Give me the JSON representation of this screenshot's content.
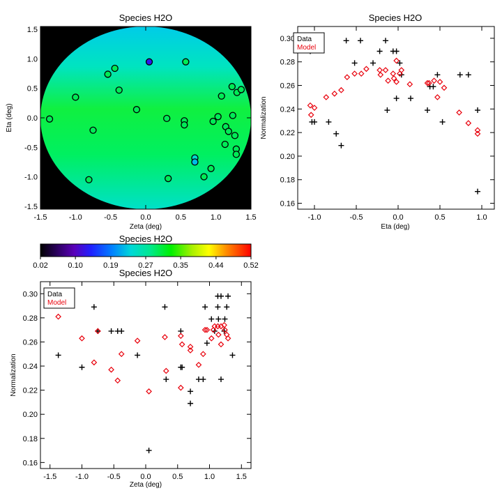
{
  "colors": {
    "data": "#000000",
    "model": "#e8000b"
  },
  "chart_data": [
    {
      "id": "map",
      "type": "heatmap",
      "title": "Species H2O",
      "xlabel": "Zeta (deg)",
      "ylabel": "Eta (deg)",
      "xlim": [
        -1.5,
        1.5
      ],
      "ylim": [
        -1.55,
        1.55
      ],
      "xticks": [
        "-1.5",
        "-1.0",
        "-0.5",
        "0.0",
        "0.5",
        "1.0",
        "1.5"
      ],
      "xtick_values": [
        -1.5,
        -1.0,
        -0.5,
        0.0,
        0.5,
        1.0,
        1.5
      ],
      "yticks": [
        "-1.5",
        "-1.0",
        "-0.5",
        "0.0",
        "0.5",
        "1.0",
        "1.5"
      ],
      "ytick_values": [
        -1.5,
        -1.0,
        -0.5,
        0.0,
        0.5,
        1.0,
        1.5
      ],
      "background_value_top": 0.2,
      "background_value_center": 0.29,
      "background_value_bottom": 0.23,
      "points": [
        {
          "zeta": 0.05,
          "eta": 0.95,
          "value": 0.13
        },
        {
          "zeta": 0.57,
          "eta": 0.95,
          "value": 0.3
        },
        {
          "zeta": -0.44,
          "eta": 0.84,
          "value": 0.3
        },
        {
          "zeta": -0.54,
          "eta": 0.74,
          "value": 0.3
        },
        {
          "zeta": -0.38,
          "eta": 0.47,
          "value": 0.3
        },
        {
          "zeta": -1.0,
          "eta": 0.35,
          "value": 0.3
        },
        {
          "zeta": -0.13,
          "eta": 0.14,
          "value": 0.3
        },
        {
          "zeta": -1.37,
          "eta": -0.02,
          "value": 0.3
        },
        {
          "zeta": -0.75,
          "eta": -0.21,
          "value": 0.3
        },
        {
          "zeta": -0.81,
          "eta": -1.05,
          "value": 0.3
        },
        {
          "zeta": 0.3,
          "eta": -0.01,
          "value": 0.3
        },
        {
          "zeta": 0.55,
          "eta": -0.05,
          "value": 0.3
        },
        {
          "zeta": 0.55,
          "eta": -0.12,
          "value": 0.3
        },
        {
          "zeta": 0.7,
          "eta": -0.68,
          "value": 0.24
        },
        {
          "zeta": 0.7,
          "eta": -0.75,
          "value": 0.22
        },
        {
          "zeta": 0.32,
          "eta": -1.03,
          "value": 0.3
        },
        {
          "zeta": 0.83,
          "eta": -1.0,
          "value": 0.3
        },
        {
          "zeta": 0.93,
          "eta": -0.86,
          "value": 0.3
        },
        {
          "zeta": 0.96,
          "eta": -0.06,
          "value": 0.3
        },
        {
          "zeta": 1.03,
          "eta": 0.02,
          "value": 0.3
        },
        {
          "zeta": 1.08,
          "eta": 0.37,
          "value": 0.3
        },
        {
          "zeta": 1.23,
          "eta": 0.53,
          "value": 0.3
        },
        {
          "zeta": 1.3,
          "eta": 0.43,
          "value": 0.3
        },
        {
          "zeta": 1.36,
          "eta": 0.48,
          "value": 0.3
        },
        {
          "zeta": 1.24,
          "eta": 0.04,
          "value": 0.3
        },
        {
          "zeta": 1.14,
          "eta": -0.15,
          "value": 0.3
        },
        {
          "zeta": 1.18,
          "eta": -0.23,
          "value": 0.3
        },
        {
          "zeta": 1.13,
          "eta": -0.45,
          "value": 0.3
        },
        {
          "zeta": 1.27,
          "eta": -0.3,
          "value": 0.3
        },
        {
          "zeta": 1.29,
          "eta": -0.53,
          "value": 0.3
        },
        {
          "zeta": 1.29,
          "eta": -0.62,
          "value": 0.3
        }
      ]
    },
    {
      "id": "colorbar",
      "type": "colorbar",
      "title": "Species H2O",
      "range": [
        0.02,
        0.52
      ],
      "ticks": [
        "0.02",
        "0.10",
        "0.19",
        "0.27",
        "0.35",
        "0.44",
        "0.52"
      ],
      "tick_values": [
        0.02,
        0.103,
        0.187,
        0.27,
        0.353,
        0.437,
        0.52
      ]
    },
    {
      "id": "eta",
      "type": "scatter",
      "title": "Species H2O",
      "xlabel": "Eta (deg)",
      "ylabel": "Normalization",
      "xlim": [
        -1.2,
        1.15
      ],
      "ylim": [
        0.155,
        0.31
      ],
      "xticks": [
        "-1.0",
        "-0.5",
        "0.0",
        "0.5",
        "1.0"
      ],
      "xtick_values": [
        -1.0,
        -0.5,
        0.0,
        0.5,
        1.0
      ],
      "yticks": [
        "0.16",
        "0.18",
        "0.20",
        "0.22",
        "0.24",
        "0.26",
        "0.28",
        "0.30"
      ],
      "ytick_values": [
        0.16,
        0.18,
        0.2,
        0.22,
        0.24,
        0.26,
        0.28,
        0.3
      ],
      "legend": [
        "Data",
        "Model"
      ],
      "series": [
        {
          "name": "Data",
          "marker": "plus",
          "points": [
            [
              -1.05,
              0.289
            ],
            [
              -1.03,
              0.229
            ],
            [
              -1.0,
              0.229
            ],
            [
              -0.83,
              0.229
            ],
            [
              -0.74,
              0.219
            ],
            [
              -0.68,
              0.209
            ],
            [
              -0.62,
              0.298
            ],
            [
              -0.52,
              0.279
            ],
            [
              -0.45,
              0.298
            ],
            [
              -0.3,
              0.279
            ],
            [
              -0.22,
              0.289
            ],
            [
              -0.15,
              0.298
            ],
            [
              -0.13,
              0.239
            ],
            [
              -0.06,
              0.289
            ],
            [
              -0.02,
              0.289
            ],
            [
              -0.02,
              0.249
            ],
            [
              0.02,
              0.279
            ],
            [
              0.04,
              0.269
            ],
            [
              0.15,
              0.249
            ],
            [
              0.35,
              0.239
            ],
            [
              0.38,
              0.259
            ],
            [
              0.42,
              0.259
            ],
            [
              0.47,
              0.269
            ],
            [
              0.53,
              0.229
            ],
            [
              0.74,
              0.269
            ],
            [
              0.84,
              0.269
            ],
            [
              0.95,
              0.239
            ],
            [
              0.95,
              0.17
            ]
          ]
        },
        {
          "name": "Model",
          "marker": "diamond",
          "points": [
            [
              -1.05,
              0.243
            ],
            [
              -1.04,
              0.235
            ],
            [
              -1.0,
              0.241
            ],
            [
              -0.86,
              0.25
            ],
            [
              -0.76,
              0.253
            ],
            [
              -0.68,
              0.256
            ],
            [
              -0.61,
              0.267
            ],
            [
              -0.52,
              0.27
            ],
            [
              -0.44,
              0.27
            ],
            [
              -0.38,
              0.274
            ],
            [
              -0.22,
              0.273
            ],
            [
              -0.21,
              0.269
            ],
            [
              -0.15,
              0.273
            ],
            [
              -0.12,
              0.264
            ],
            [
              -0.06,
              0.27
            ],
            [
              -0.05,
              0.266
            ],
            [
              -0.02,
              0.281
            ],
            [
              -0.02,
              0.263
            ],
            [
              0.02,
              0.27
            ],
            [
              0.04,
              0.273
            ],
            [
              0.14,
              0.261
            ],
            [
              0.35,
              0.262
            ],
            [
              0.37,
              0.262
            ],
            [
              0.43,
              0.264
            ],
            [
              0.47,
              0.25
            ],
            [
              0.5,
              0.263
            ],
            [
              0.55,
              0.258
            ],
            [
              0.73,
              0.237
            ],
            [
              0.84,
              0.228
            ],
            [
              0.95,
              0.222
            ],
            [
              0.95,
              0.219
            ]
          ]
        }
      ]
    },
    {
      "id": "zeta",
      "type": "scatter",
      "title": "Species H2O",
      "xlabel": "Zeta (deg)",
      "ylabel": "Normalization",
      "xlim": [
        -1.65,
        1.65
      ],
      "ylim": [
        0.155,
        0.31
      ],
      "xticks": [
        "-1.5",
        "-1.0",
        "-0.5",
        "0.0",
        "0.5",
        "1.0",
        "1.5"
      ],
      "xtick_values": [
        -1.5,
        -1.0,
        -0.5,
        0.0,
        0.5,
        1.0,
        1.5
      ],
      "yticks": [
        "0.16",
        "0.18",
        "0.20",
        "0.22",
        "0.24",
        "0.26",
        "0.28",
        "0.30"
      ],
      "ytick_values": [
        0.16,
        0.18,
        0.2,
        0.22,
        0.24,
        0.26,
        0.28,
        0.3
      ],
      "legend": [
        "Data",
        "Model"
      ],
      "series": [
        {
          "name": "Data",
          "marker": "plus",
          "points": [
            [
              -1.37,
              0.249
            ],
            [
              -1.0,
              0.239
            ],
            [
              -0.81,
              0.289
            ],
            [
              -0.75,
              0.269
            ],
            [
              -0.54,
              0.269
            ],
            [
              -0.44,
              0.269
            ],
            [
              -0.38,
              0.269
            ],
            [
              -0.13,
              0.249
            ],
            [
              0.05,
              0.17
            ],
            [
              0.3,
              0.289
            ],
            [
              0.32,
              0.229
            ],
            [
              0.55,
              0.269
            ],
            [
              0.55,
              0.239
            ],
            [
              0.57,
              0.239
            ],
            [
              0.7,
              0.219
            ],
            [
              0.7,
              0.209
            ],
            [
              0.83,
              0.229
            ],
            [
              0.9,
              0.229
            ],
            [
              0.93,
              0.289
            ],
            [
              0.96,
              0.259
            ],
            [
              1.03,
              0.279
            ],
            [
              1.08,
              0.269
            ],
            [
              1.13,
              0.298
            ],
            [
              1.13,
              0.289
            ],
            [
              1.14,
              0.279
            ],
            [
              1.18,
              0.229
            ],
            [
              1.18,
              0.298
            ],
            [
              1.23,
              0.269
            ],
            [
              1.24,
              0.279
            ],
            [
              1.27,
              0.289
            ],
            [
              1.29,
              0.298
            ],
            [
              1.36,
              0.249
            ]
          ]
        },
        {
          "name": "Model",
          "marker": "diamond",
          "points": [
            [
              -1.37,
              0.281
            ],
            [
              -1.0,
              0.263
            ],
            [
              -0.81,
              0.243
            ],
            [
              -0.75,
              0.269
            ],
            [
              -0.54,
              0.237
            ],
            [
              -0.44,
              0.228
            ],
            [
              -0.38,
              0.25
            ],
            [
              -0.13,
              0.261
            ],
            [
              0.05,
              0.219
            ],
            [
              0.3,
              0.264
            ],
            [
              0.32,
              0.236
            ],
            [
              0.55,
              0.265
            ],
            [
              0.55,
              0.222
            ],
            [
              0.57,
              0.258
            ],
            [
              0.7,
              0.253
            ],
            [
              0.7,
              0.256
            ],
            [
              0.83,
              0.241
            ],
            [
              0.9,
              0.25
            ],
            [
              0.93,
              0.27
            ],
            [
              0.96,
              0.27
            ],
            [
              1.03,
              0.263
            ],
            [
              1.06,
              0.27
            ],
            [
              1.08,
              0.273
            ],
            [
              1.13,
              0.273
            ],
            [
              1.14,
              0.266
            ],
            [
              1.18,
              0.273
            ],
            [
              1.18,
              0.258
            ],
            [
              1.23,
              0.274
            ],
            [
              1.24,
              0.27
            ],
            [
              1.27,
              0.266
            ],
            [
              1.29,
              0.263
            ]
          ]
        }
      ]
    }
  ]
}
